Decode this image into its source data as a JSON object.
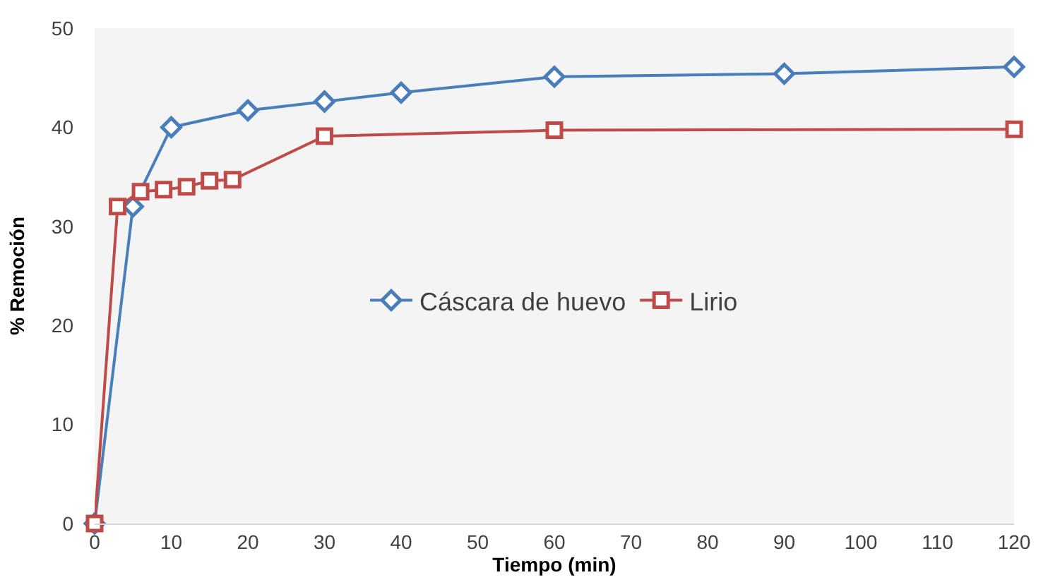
{
  "chart_data": {
    "type": "line",
    "xlabel": "Tiempo (min)",
    "ylabel": "% Remoción",
    "xlim": [
      0,
      120
    ],
    "xticks": [
      0,
      10,
      20,
      30,
      40,
      50,
      60,
      70,
      80,
      90,
      100,
      110,
      120
    ],
    "ylim": [
      0,
      50
    ],
    "yticks": [
      0,
      10,
      20,
      30,
      40,
      50
    ],
    "grid": false,
    "legend": "center",
    "series": [
      {
        "name": "Cáscara de huevo",
        "color": "#4a7ebb",
        "marker": "diamond",
        "x": [
          0,
          5,
          10,
          20,
          30,
          40,
          60,
          90,
          120
        ],
        "values": [
          0,
          32.0,
          40.0,
          41.7,
          42.6,
          43.5,
          45.1,
          45.4,
          46.1
        ]
      },
      {
        "name": "Lirio",
        "color": "#be4b48",
        "marker": "square",
        "x": [
          0,
          3,
          6,
          9,
          12,
          15,
          18,
          30,
          60,
          120
        ],
        "values": [
          0,
          32.0,
          33.5,
          33.7,
          34.0,
          34.6,
          34.7,
          39.1,
          39.7,
          39.8
        ]
      }
    ]
  }
}
